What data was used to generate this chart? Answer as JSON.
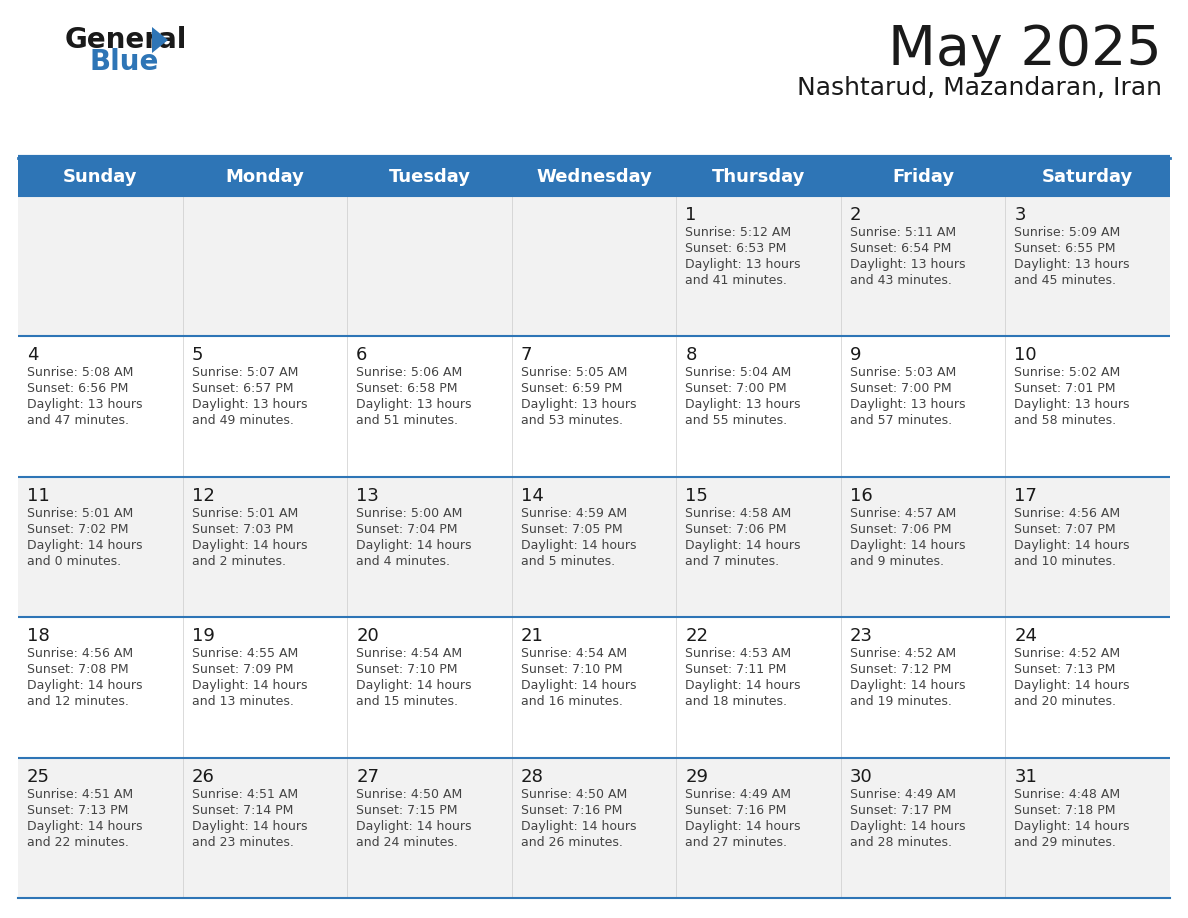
{
  "title": "May 2025",
  "subtitle": "Nashtarud, Mazandaran, Iran",
  "header_bg": "#2E75B6",
  "header_text_color": "#FFFFFF",
  "day_names": [
    "Sunday",
    "Monday",
    "Tuesday",
    "Wednesday",
    "Thursday",
    "Friday",
    "Saturday"
  ],
  "row_bg": [
    "#F2F2F2",
    "#FFFFFF",
    "#F2F2F2",
    "#FFFFFF",
    "#F2F2F2"
  ],
  "cell_text_color": "#444444",
  "separator_color": "#2E75B6",
  "calendar_data": [
    [
      {
        "day": "",
        "sunrise": "",
        "sunset": "",
        "daylight_h": "",
        "daylight_m": ""
      },
      {
        "day": "",
        "sunrise": "",
        "sunset": "",
        "daylight_h": "",
        "daylight_m": ""
      },
      {
        "day": "",
        "sunrise": "",
        "sunset": "",
        "daylight_h": "",
        "daylight_m": ""
      },
      {
        "day": "",
        "sunrise": "",
        "sunset": "",
        "daylight_h": "",
        "daylight_m": ""
      },
      {
        "day": "1",
        "sunrise": "5:12 AM",
        "sunset": "6:53 PM",
        "daylight_h": "13 hours",
        "daylight_m": "and 41 minutes."
      },
      {
        "day": "2",
        "sunrise": "5:11 AM",
        "sunset": "6:54 PM",
        "daylight_h": "13 hours",
        "daylight_m": "and 43 minutes."
      },
      {
        "day": "3",
        "sunrise": "5:09 AM",
        "sunset": "6:55 PM",
        "daylight_h": "13 hours",
        "daylight_m": "and 45 minutes."
      }
    ],
    [
      {
        "day": "4",
        "sunrise": "5:08 AM",
        "sunset": "6:56 PM",
        "daylight_h": "13 hours",
        "daylight_m": "and 47 minutes."
      },
      {
        "day": "5",
        "sunrise": "5:07 AM",
        "sunset": "6:57 PM",
        "daylight_h": "13 hours",
        "daylight_m": "and 49 minutes."
      },
      {
        "day": "6",
        "sunrise": "5:06 AM",
        "sunset": "6:58 PM",
        "daylight_h": "13 hours",
        "daylight_m": "and 51 minutes."
      },
      {
        "day": "7",
        "sunrise": "5:05 AM",
        "sunset": "6:59 PM",
        "daylight_h": "13 hours",
        "daylight_m": "and 53 minutes."
      },
      {
        "day": "8",
        "sunrise": "5:04 AM",
        "sunset": "7:00 PM",
        "daylight_h": "13 hours",
        "daylight_m": "and 55 minutes."
      },
      {
        "day": "9",
        "sunrise": "5:03 AM",
        "sunset": "7:00 PM",
        "daylight_h": "13 hours",
        "daylight_m": "and 57 minutes."
      },
      {
        "day": "10",
        "sunrise": "5:02 AM",
        "sunset": "7:01 PM",
        "daylight_h": "13 hours",
        "daylight_m": "and 58 minutes."
      }
    ],
    [
      {
        "day": "11",
        "sunrise": "5:01 AM",
        "sunset": "7:02 PM",
        "daylight_h": "14 hours",
        "daylight_m": "and 0 minutes."
      },
      {
        "day": "12",
        "sunrise": "5:01 AM",
        "sunset": "7:03 PM",
        "daylight_h": "14 hours",
        "daylight_m": "and 2 minutes."
      },
      {
        "day": "13",
        "sunrise": "5:00 AM",
        "sunset": "7:04 PM",
        "daylight_h": "14 hours",
        "daylight_m": "and 4 minutes."
      },
      {
        "day": "14",
        "sunrise": "4:59 AM",
        "sunset": "7:05 PM",
        "daylight_h": "14 hours",
        "daylight_m": "and 5 minutes."
      },
      {
        "day": "15",
        "sunrise": "4:58 AM",
        "sunset": "7:06 PM",
        "daylight_h": "14 hours",
        "daylight_m": "and 7 minutes."
      },
      {
        "day": "16",
        "sunrise": "4:57 AM",
        "sunset": "7:06 PM",
        "daylight_h": "14 hours",
        "daylight_m": "and 9 minutes."
      },
      {
        "day": "17",
        "sunrise": "4:56 AM",
        "sunset": "7:07 PM",
        "daylight_h": "14 hours",
        "daylight_m": "and 10 minutes."
      }
    ],
    [
      {
        "day": "18",
        "sunrise": "4:56 AM",
        "sunset": "7:08 PM",
        "daylight_h": "14 hours",
        "daylight_m": "and 12 minutes."
      },
      {
        "day": "19",
        "sunrise": "4:55 AM",
        "sunset": "7:09 PM",
        "daylight_h": "14 hours",
        "daylight_m": "and 13 minutes."
      },
      {
        "day": "20",
        "sunrise": "4:54 AM",
        "sunset": "7:10 PM",
        "daylight_h": "14 hours",
        "daylight_m": "and 15 minutes."
      },
      {
        "day": "21",
        "sunrise": "4:54 AM",
        "sunset": "7:10 PM",
        "daylight_h": "14 hours",
        "daylight_m": "and 16 minutes."
      },
      {
        "day": "22",
        "sunrise": "4:53 AM",
        "sunset": "7:11 PM",
        "daylight_h": "14 hours",
        "daylight_m": "and 18 minutes."
      },
      {
        "day": "23",
        "sunrise": "4:52 AM",
        "sunset": "7:12 PM",
        "daylight_h": "14 hours",
        "daylight_m": "and 19 minutes."
      },
      {
        "day": "24",
        "sunrise": "4:52 AM",
        "sunset": "7:13 PM",
        "daylight_h": "14 hours",
        "daylight_m": "and 20 minutes."
      }
    ],
    [
      {
        "day": "25",
        "sunrise": "4:51 AM",
        "sunset": "7:13 PM",
        "daylight_h": "14 hours",
        "daylight_m": "and 22 minutes."
      },
      {
        "day": "26",
        "sunrise": "4:51 AM",
        "sunset": "7:14 PM",
        "daylight_h": "14 hours",
        "daylight_m": "and 23 minutes."
      },
      {
        "day": "27",
        "sunrise": "4:50 AM",
        "sunset": "7:15 PM",
        "daylight_h": "14 hours",
        "daylight_m": "and 24 minutes."
      },
      {
        "day": "28",
        "sunrise": "4:50 AM",
        "sunset": "7:16 PM",
        "daylight_h": "14 hours",
        "daylight_m": "and 26 minutes."
      },
      {
        "day": "29",
        "sunrise": "4:49 AM",
        "sunset": "7:16 PM",
        "daylight_h": "14 hours",
        "daylight_m": "and 27 minutes."
      },
      {
        "day": "30",
        "sunrise": "4:49 AM",
        "sunset": "7:17 PM",
        "daylight_h": "14 hours",
        "daylight_m": "and 28 minutes."
      },
      {
        "day": "31",
        "sunrise": "4:48 AM",
        "sunset": "7:18 PM",
        "daylight_h": "14 hours",
        "daylight_m": "and 29 minutes."
      }
    ]
  ],
  "logo_text_general": "General",
  "logo_text_blue": "Blue",
  "logo_color_dark": "#1a1a1a",
  "logo_color_blue": "#2E75B6"
}
